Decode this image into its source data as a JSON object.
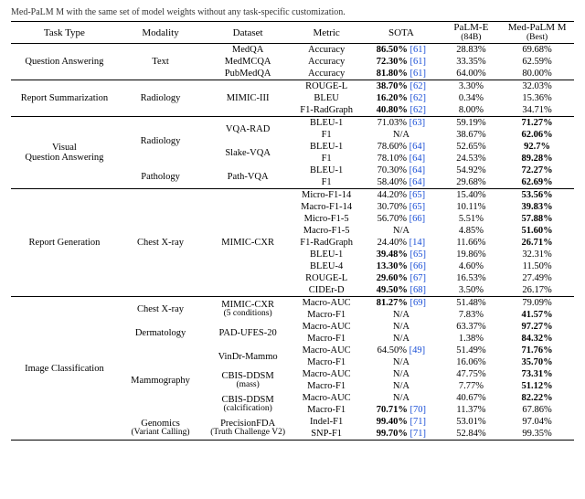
{
  "caption_fragment": "Med-PaLM M with the same set of model weights without any task-specific customization.",
  "headers": {
    "task": "Task Type",
    "modality": "Modality",
    "dataset": "Dataset",
    "metric": "Metric",
    "sota": "SOTA",
    "palme": "PaLM-E",
    "palme_sub": "(84B)",
    "best": "Med-PaLM M",
    "best_sub": "(Best)"
  },
  "cite_color": "#1a4fd6",
  "groups": [
    {
      "task": "Question Answering",
      "subgroups": [
        {
          "modality": "Text",
          "blocks": [
            {
              "dataset": "MedQA",
              "rows": [
                {
                  "metric": "Accuracy",
                  "sota": "86.50%",
                  "cite": "[61]",
                  "sota_bold": true,
                  "palme": "28.83%",
                  "best": "69.68%"
                }
              ]
            },
            {
              "dataset": "MedMCQA",
              "rows": [
                {
                  "metric": "Accuracy",
                  "sota": "72.30%",
                  "cite": "[61]",
                  "sota_bold": true,
                  "palme": "33.35%",
                  "best": "62.59%"
                }
              ]
            },
            {
              "dataset": "PubMedQA",
              "rows": [
                {
                  "metric": "Accuracy",
                  "sota": "81.80%",
                  "cite": "[61]",
                  "sota_bold": true,
                  "palme": "64.00%",
                  "best": "80.00%"
                }
              ]
            }
          ]
        }
      ]
    },
    {
      "task": "Report Summarization",
      "subgroups": [
        {
          "modality": "Radiology",
          "blocks": [
            {
              "dataset": "MIMIC-III",
              "rows": [
                {
                  "metric": "ROUGE-L",
                  "sota": "38.70%",
                  "cite": "[62]",
                  "sota_bold": true,
                  "palme": "3.30%",
                  "best": "32.03%"
                },
                {
                  "metric": "BLEU",
                  "sota": "16.20%",
                  "cite": "[62]",
                  "sota_bold": true,
                  "palme": "0.34%",
                  "best": "15.36%"
                },
                {
                  "metric": "F1-RadGraph",
                  "sota": "40.80%",
                  "cite": "[62]",
                  "sota_bold": true,
                  "palme": "8.00%",
                  "best": "34.71%"
                }
              ]
            }
          ]
        }
      ]
    },
    {
      "task": "Visual\nQuestion Answering",
      "subgroups": [
        {
          "modality": "Radiology",
          "blocks": [
            {
              "dataset": "VQA-RAD",
              "rows": [
                {
                  "metric": "BLEU-1",
                  "sota": "71.03%",
                  "cite": "[63]",
                  "palme": "59.19%",
                  "best": "71.27%",
                  "best_bold": true
                },
                {
                  "metric": "F1",
                  "sota": "N/A",
                  "palme": "38.67%",
                  "best": "62.06%",
                  "best_bold": true
                }
              ]
            },
            {
              "dataset": "Slake-VQA",
              "rows": [
                {
                  "metric": "BLEU-1",
                  "sota": "78.60%",
                  "cite": "[64]",
                  "palme": "52.65%",
                  "best": "92.7%",
                  "best_bold": true
                },
                {
                  "metric": "F1",
                  "sota": "78.10%",
                  "cite": "[64]",
                  "palme": "24.53%",
                  "best": "89.28%",
                  "best_bold": true
                }
              ]
            }
          ]
        },
        {
          "modality": "Pathology",
          "blocks": [
            {
              "dataset": "Path-VQA",
              "rows": [
                {
                  "metric": "BLEU-1",
                  "sota": "70.30%",
                  "cite": "[64]",
                  "palme": "54.92%",
                  "best": "72.27%",
                  "best_bold": true
                },
                {
                  "metric": "F1",
                  "sota": "58.40%",
                  "cite": "[64]",
                  "palme": "29.68%",
                  "best": "62.69%",
                  "best_bold": true
                }
              ]
            }
          ]
        }
      ]
    },
    {
      "task": "Report Generation",
      "subgroups": [
        {
          "modality": "Chest X-ray",
          "blocks": [
            {
              "dataset": "MIMIC-CXR",
              "rows": [
                {
                  "metric": "Micro-F1-14",
                  "sota": "44.20%",
                  "cite": "[65]",
                  "palme": "15.40%",
                  "best": "53.56%",
                  "best_bold": true
                },
                {
                  "metric": "Macro-F1-14",
                  "sota": "30.70%",
                  "cite": "[65]",
                  "palme": "10.11%",
                  "best": "39.83%",
                  "best_bold": true
                },
                {
                  "metric": "Micro-F1-5",
                  "sota": "56.70%",
                  "cite": "[66]",
                  "palme": "5.51%",
                  "best": "57.88%",
                  "best_bold": true
                },
                {
                  "metric": "Macro-F1-5",
                  "sota": "N/A",
                  "palme": "4.85%",
                  "best": "51.60%",
                  "best_bold": true
                },
                {
                  "metric": "F1-RadGraph",
                  "sota": "24.40%",
                  "cite": "[14]",
                  "palme": "11.66%",
                  "best": "26.71%",
                  "best_bold": true
                },
                {
                  "metric": "BLEU-1",
                  "sota": "39.48%",
                  "cite": "[65]",
                  "sota_bold": true,
                  "palme": "19.86%",
                  "best": "32.31%"
                },
                {
                  "metric": "BLEU-4",
                  "sota": "13.30%",
                  "cite": "[66]",
                  "sota_bold": true,
                  "palme": "4.60%",
                  "best": "11.50%"
                },
                {
                  "metric": "ROUGE-L",
                  "sota": "29.60%",
                  "cite": "[67]",
                  "sota_bold": true,
                  "palme": "16.53%",
                  "best": "27.49%"
                },
                {
                  "metric": "CIDEr-D",
                  "sota": "49.50%",
                  "cite": "[68]",
                  "sota_bold": true,
                  "palme": "3.50%",
                  "best": "26.17%"
                }
              ]
            }
          ]
        }
      ]
    },
    {
      "task": "Image Classification",
      "subgroups": [
        {
          "modality": "Chest X-ray",
          "blocks": [
            {
              "dataset": "MIMIC-CXR",
              "dataset_sub": "(5 conditions)",
              "rows": [
                {
                  "metric": "Macro-AUC",
                  "sota": "81.27%",
                  "cite": "[69]",
                  "sota_bold": true,
                  "palme": "51.48%",
                  "best": "79.09%"
                },
                {
                  "metric": "Macro-F1",
                  "sota": "N/A",
                  "palme": "7.83%",
                  "best": "41.57%",
                  "best_bold": true
                }
              ]
            }
          ]
        },
        {
          "modality": "Dermatology",
          "blocks": [
            {
              "dataset": "PAD-UFES-20",
              "rows": [
                {
                  "metric": "Macro-AUC",
                  "sota": "N/A",
                  "palme": "63.37%",
                  "best": "97.27%",
                  "best_bold": true
                },
                {
                  "metric": "Macro-F1",
                  "sota": "N/A",
                  "palme": "1.38%",
                  "best": "84.32%",
                  "best_bold": true
                }
              ]
            }
          ]
        },
        {
          "modality": "Mammography",
          "blocks": [
            {
              "dataset": "VinDr-Mammo",
              "rows": [
                {
                  "metric": "Macro-AUC",
                  "sota": "64.50%",
                  "cite": "[49]",
                  "palme": "51.49%",
                  "best": "71.76%",
                  "best_bold": true
                },
                {
                  "metric": "Macro-F1",
                  "sota": "N/A",
                  "palme": "16.06%",
                  "best": "35.70%",
                  "best_bold": true
                }
              ]
            },
            {
              "dataset": "CBIS-DDSM",
              "dataset_sub": "(mass)",
              "rows": [
                {
                  "metric": "Macro-AUC",
                  "sota": "N/A",
                  "palme": "47.75%",
                  "best": "73.31%",
                  "best_bold": true
                },
                {
                  "metric": "Macro-F1",
                  "sota": "N/A",
                  "palme": "7.77%",
                  "best": "51.12%",
                  "best_bold": true
                }
              ]
            },
            {
              "dataset": "CBIS-DDSM",
              "dataset_sub": "(calcification)",
              "rows": [
                {
                  "metric": "Macro-AUC",
                  "sota": "N/A",
                  "palme": "40.67%",
                  "best": "82.22%",
                  "best_bold": true
                },
                {
                  "metric": "Macro-F1",
                  "sota": "70.71%",
                  "cite": "[70]",
                  "sota_bold": true,
                  "palme": "11.37%",
                  "best": "67.86%"
                }
              ]
            }
          ]
        },
        {
          "modality": "Genomics",
          "modality_sub": "(Variant Calling)",
          "blocks": [
            {
              "dataset": "PrecisionFDA",
              "dataset_sub": "(Truth Challenge V2)",
              "rows": [
                {
                  "metric": "Indel-F1",
                  "sota": "99.40%",
                  "cite": "[71]",
                  "sota_bold": true,
                  "palme": "53.01%",
                  "best": "97.04%"
                },
                {
                  "metric": "SNP-F1",
                  "sota": "99.70%",
                  "cite": "[71]",
                  "sota_bold": true,
                  "palme": "52.84%",
                  "best": "99.35%"
                }
              ]
            }
          ]
        }
      ]
    }
  ]
}
